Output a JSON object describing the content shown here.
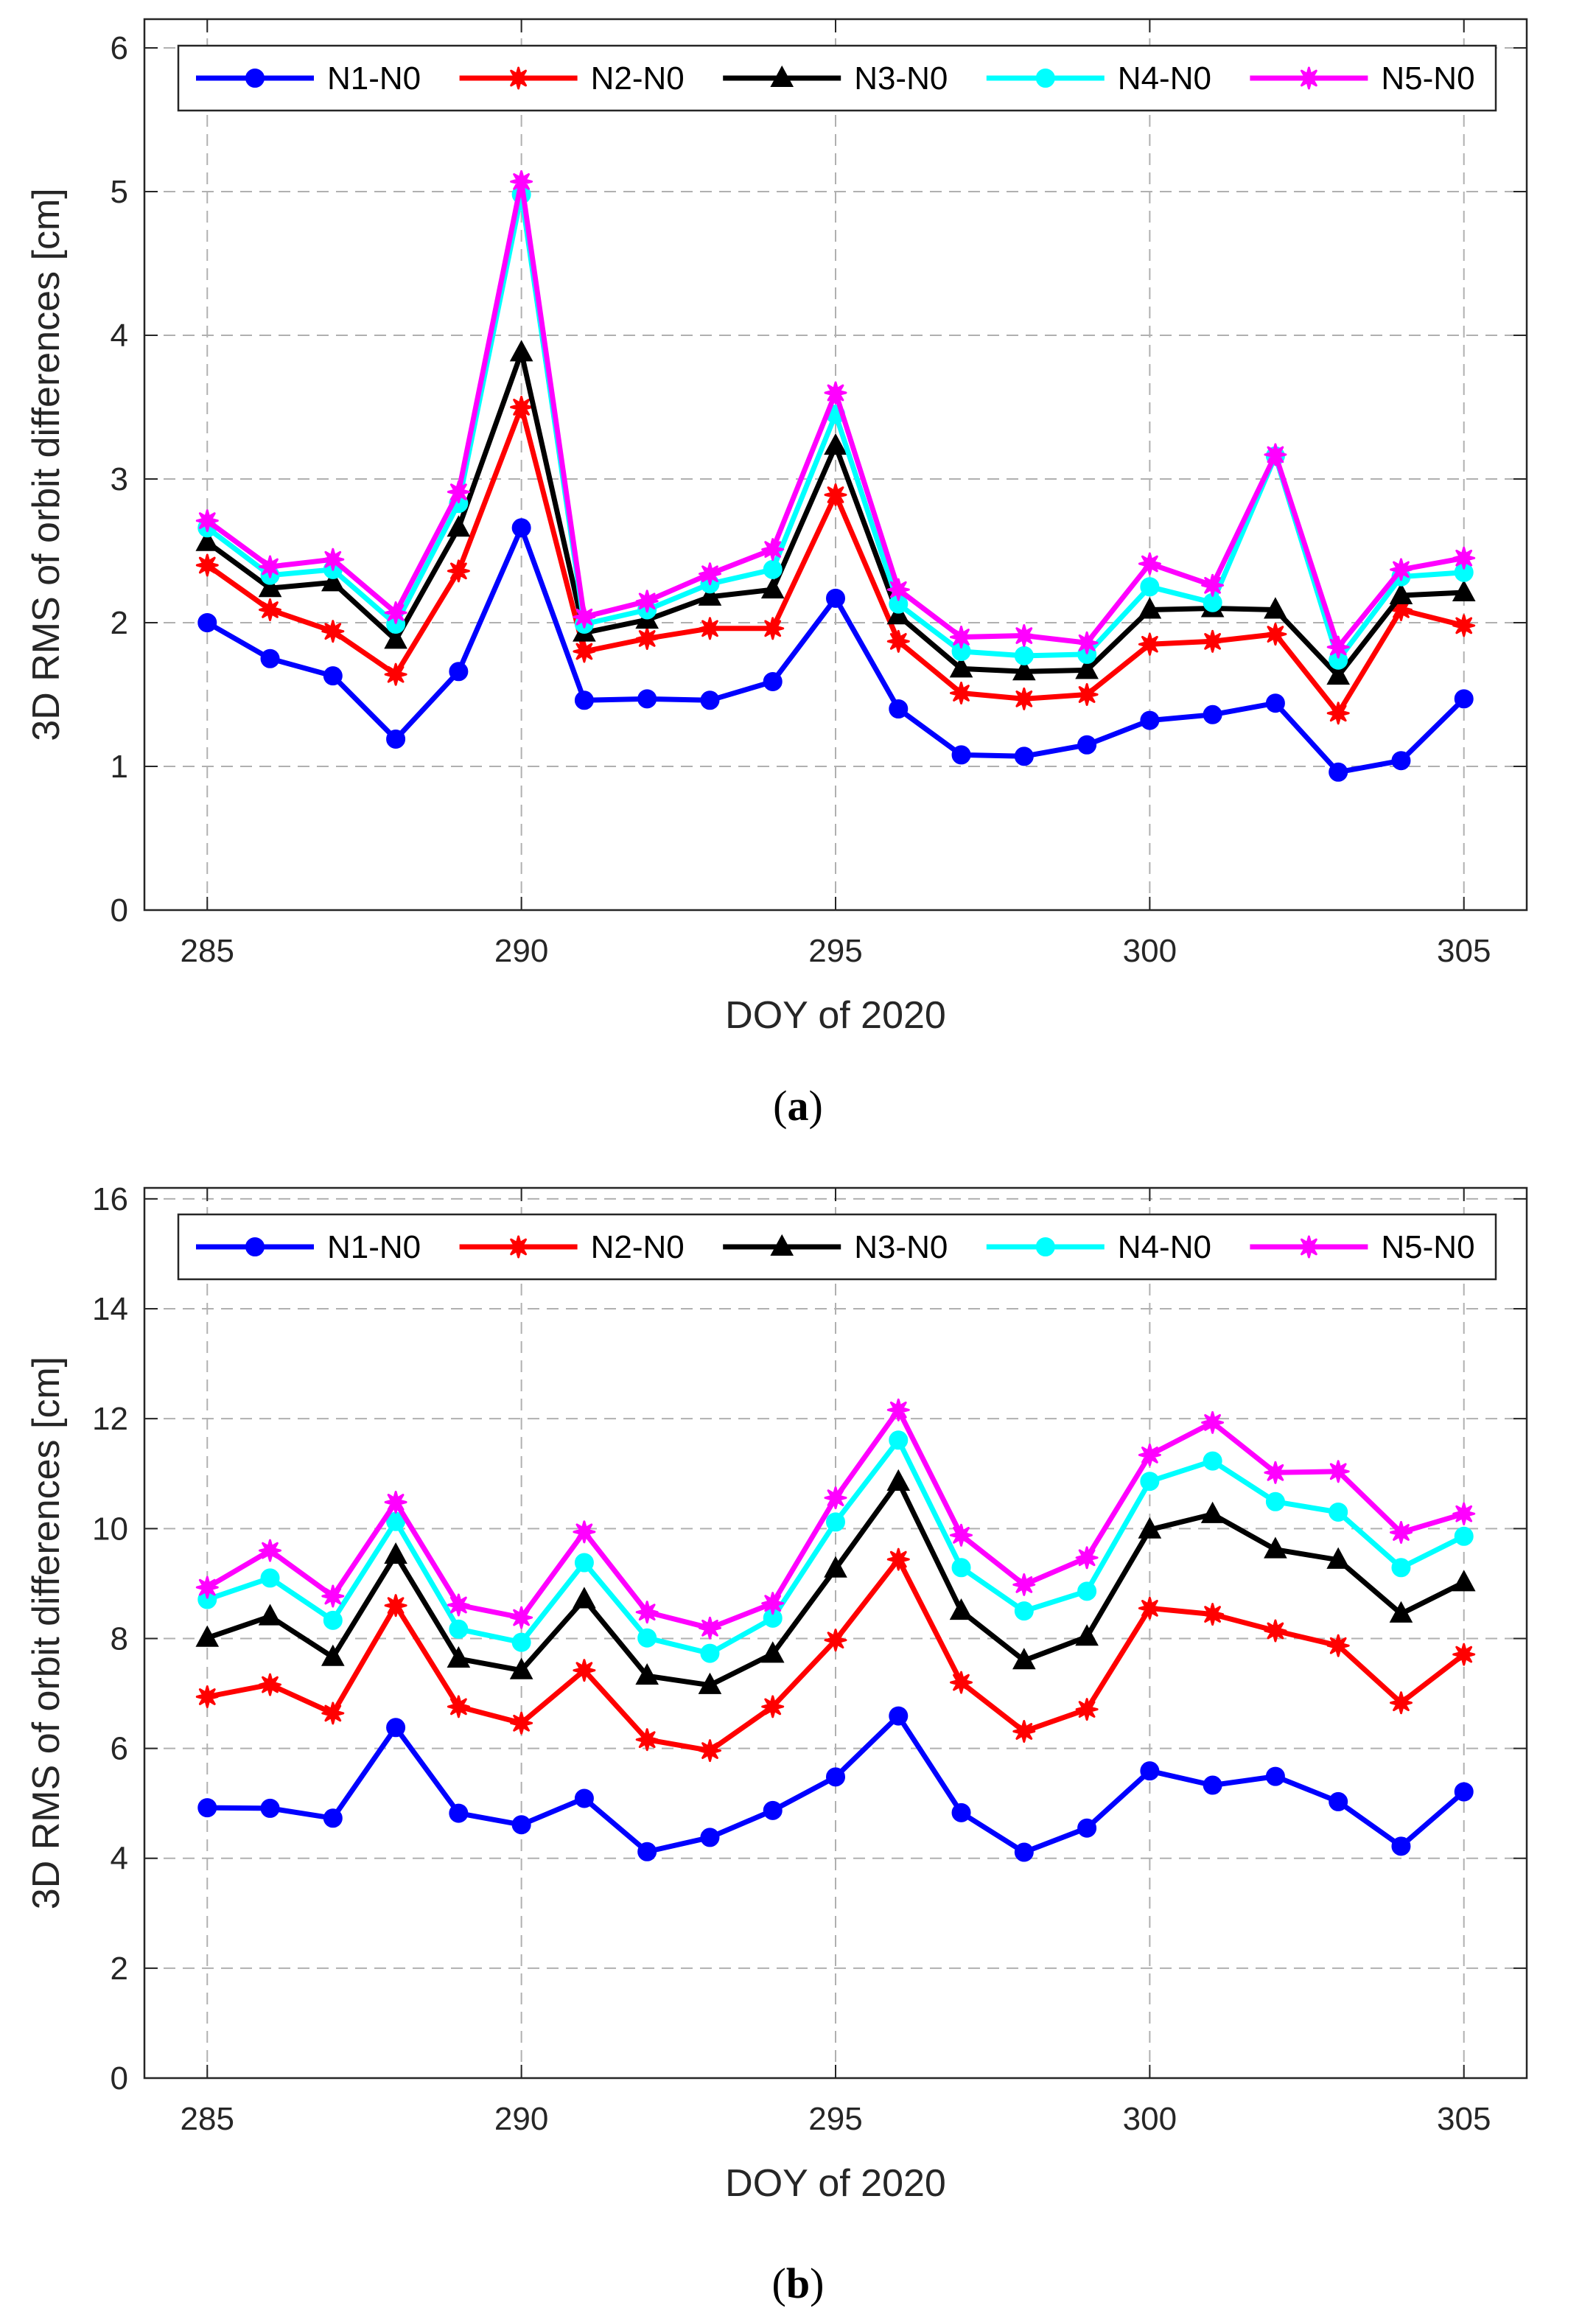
{
  "chart_data": [
    {
      "type": "line",
      "panel": "a",
      "caption_letter": "a",
      "xlabel": "DOY of 2020",
      "ylabel": "3D RMS of orbit differences [cm]",
      "xlim": [
        284,
        306
      ],
      "ylim": [
        0,
        6.2
      ],
      "xticks": [
        285,
        290,
        295,
        300,
        305
      ],
      "yticks": [
        0,
        1,
        2,
        3,
        4,
        5,
        6
      ],
      "grid": true,
      "legend": "top, horizontal",
      "x": [
        285,
        286,
        287,
        288,
        289,
        290,
        291,
        292,
        293,
        294,
        295,
        296,
        297,
        298,
        299,
        300,
        301,
        302,
        303,
        304,
        305
      ],
      "series": [
        {
          "name": "N1-N0",
          "color": "#0000ff",
          "marker": "circle",
          "values": [
            2.0,
            1.75,
            1.63,
            1.19,
            1.66,
            2.66,
            1.46,
            1.47,
            1.46,
            1.59,
            2.17,
            1.4,
            1.08,
            1.07,
            1.15,
            1.32,
            1.36,
            1.44,
            0.96,
            1.04,
            1.47
          ]
        },
        {
          "name": "N2-N0",
          "color": "#ff0000",
          "marker": "asterisk",
          "values": [
            2.4,
            2.09,
            1.94,
            1.64,
            2.36,
            3.5,
            1.8,
            1.89,
            1.96,
            1.96,
            2.89,
            1.87,
            1.51,
            1.47,
            1.5,
            1.85,
            1.87,
            1.92,
            1.37,
            2.09,
            1.98
          ]
        },
        {
          "name": "N3-N0",
          "color": "#000000",
          "marker": "triangle",
          "values": [
            2.56,
            2.24,
            2.28,
            1.88,
            2.66,
            3.88,
            1.93,
            2.02,
            2.18,
            2.23,
            3.23,
            2.05,
            1.68,
            1.66,
            1.67,
            2.09,
            2.1,
            2.09,
            1.63,
            2.19,
            2.21
          ]
        },
        {
          "name": "N4-N0",
          "color": "#00ffff",
          "marker": "circle",
          "values": [
            2.66,
            2.33,
            2.37,
            1.99,
            2.83,
            4.98,
            1.99,
            2.09,
            2.27,
            2.37,
            3.45,
            2.13,
            1.8,
            1.77,
            1.78,
            2.25,
            2.14,
            3.16,
            1.74,
            2.32,
            2.35
          ]
        },
        {
          "name": "N5-N0",
          "color": "#ff00ff",
          "marker": "star",
          "values": [
            2.71,
            2.39,
            2.44,
            2.07,
            2.91,
            5.07,
            2.04,
            2.15,
            2.34,
            2.51,
            3.6,
            2.23,
            1.9,
            1.91,
            1.86,
            2.41,
            2.26,
            3.17,
            1.83,
            2.37,
            2.45
          ]
        }
      ]
    },
    {
      "type": "line",
      "panel": "b",
      "caption_letter": "b",
      "xlabel": "DOY of 2020",
      "ylabel": "3D RMS of orbit differences [cm]",
      "xlim": [
        284,
        306
      ],
      "ylim": [
        0,
        16.2
      ],
      "xticks": [
        285,
        290,
        295,
        300,
        305
      ],
      "yticks": [
        0,
        2,
        4,
        6,
        8,
        10,
        12,
        14,
        16
      ],
      "grid": true,
      "legend": "top, horizontal",
      "x": [
        285,
        286,
        287,
        288,
        289,
        290,
        291,
        292,
        293,
        294,
        295,
        296,
        297,
        298,
        299,
        300,
        301,
        302,
        303,
        304,
        305
      ],
      "series": [
        {
          "name": "N1-N0",
          "color": "#0000ff",
          "marker": "circle",
          "values": [
            4.92,
            4.91,
            4.73,
            6.38,
            4.82,
            4.61,
            5.09,
            4.12,
            4.38,
            4.87,
            5.48,
            6.59,
            4.83,
            4.11,
            4.55,
            5.59,
            5.33,
            5.49,
            5.03,
            4.22,
            5.21
          ]
        },
        {
          "name": "N2-N0",
          "color": "#ff0000",
          "marker": "asterisk",
          "values": [
            6.94,
            7.16,
            6.64,
            8.6,
            6.76,
            6.46,
            7.42,
            6.16,
            5.96,
            6.76,
            7.97,
            9.44,
            7.2,
            6.31,
            6.71,
            8.55,
            8.44,
            8.14,
            7.87,
            6.83,
            7.71
          ]
        },
        {
          "name": "N3-N0",
          "color": "#000000",
          "marker": "triangle",
          "values": [
            8.01,
            8.4,
            7.66,
            9.52,
            7.63,
            7.42,
            8.71,
            7.32,
            7.15,
            7.72,
            9.27,
            10.85,
            8.5,
            7.6,
            8.03,
            9.98,
            10.26,
            9.62,
            9.43,
            8.45,
            9.02
          ]
        },
        {
          "name": "N4-N0",
          "color": "#00ffff",
          "marker": "circle",
          "values": [
            8.71,
            9.1,
            8.33,
            10.13,
            8.17,
            7.93,
            9.38,
            8.01,
            7.73,
            8.37,
            10.12,
            11.61,
            9.29,
            8.5,
            8.86,
            10.86,
            11.23,
            10.49,
            10.3,
            9.29,
            9.86
          ]
        },
        {
          "name": "N5-N0",
          "color": "#ff00ff",
          "marker": "star",
          "values": [
            8.93,
            9.6,
            8.77,
            10.48,
            8.61,
            8.38,
            9.94,
            8.48,
            8.19,
            8.64,
            10.56,
            12.16,
            9.88,
            8.98,
            9.47,
            11.34,
            11.93,
            11.02,
            11.04,
            9.93,
            10.27
          ]
        }
      ]
    }
  ]
}
